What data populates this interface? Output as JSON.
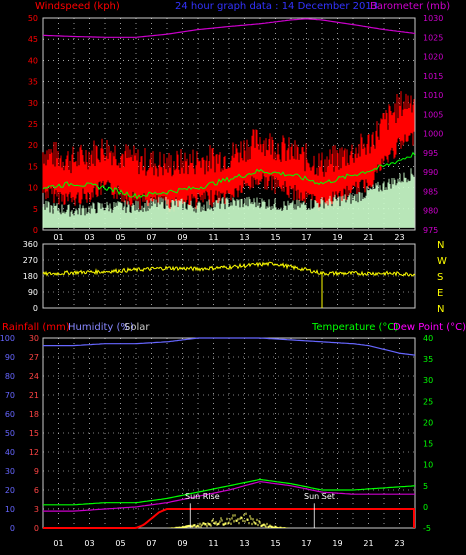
{
  "header": {
    "windspeed_label": "Windspeed (kph)",
    "subtitle": "24 hour graph data : 14 December 2013",
    "barometer_label": "Barometer (mb)"
  },
  "colors": {
    "wind": "#ff0000",
    "gust": "#ff0000",
    "avg": "#00ff00",
    "light": "#ccffcc",
    "baro": "#cc00cc",
    "dir": "#ffff00",
    "rain_label": "#ff0000",
    "hum_label": "#8888ff",
    "solar_label": "#cccccc",
    "temp_label": "#00ff00",
    "dew_label": "#ff00ff",
    "rain": "#ff0000",
    "humidity": "#6666ff",
    "temperature": "#00ff00",
    "dewpoint": "#cc00cc",
    "solar": "#ffff66",
    "grid": "#ffffff",
    "axis_left_top": "#ff0000",
    "axis_right_top": "#cc00cc",
    "axis_mid": "#ffffff",
    "axis_bottom_left": "#ff4444",
    "axis_bottom_left2": "#6666ff",
    "axis_bottom_right": "#00ff00"
  },
  "chart_data": [
    {
      "type": "line",
      "title": "24 hour graph data : 14 December 2013",
      "x_ticks": [
        "01",
        "03",
        "05",
        "07",
        "09",
        "11",
        "13",
        "15",
        "17",
        "19",
        "21",
        "23"
      ],
      "ylabel_left": "Windspeed (kph)",
      "ylabel_right": "Barometer (mb)",
      "ylim_left": [
        0,
        50
      ],
      "ylim_right": [
        975,
        1030
      ],
      "y_ticks_left": [
        0,
        5,
        10,
        15,
        20,
        25,
        30,
        35,
        40,
        45,
        50
      ],
      "y_ticks_right": [
        975,
        980,
        985,
        990,
        995,
        1000,
        1005,
        1010,
        1015,
        1020,
        1025,
        1030
      ],
      "grid": true,
      "series": [
        {
          "name": "Barometer",
          "axis": "right",
          "x": [
            0,
            2,
            4,
            6,
            8,
            10,
            12,
            14,
            16,
            17,
            18,
            20,
            22,
            24
          ],
          "values": [
            1025.5,
            1025.2,
            1025.0,
            1025.0,
            1025.8,
            1027.0,
            1027.8,
            1028.5,
            1029.5,
            1029.8,
            1029.5,
            1028.3,
            1027.0,
            1026.0
          ]
        },
        {
          "name": "Gust",
          "axis": "left",
          "x": [
            0,
            2,
            4,
            6,
            8,
            10,
            12,
            14,
            16,
            18,
            20,
            21,
            22,
            23,
            24
          ],
          "values": [
            17,
            15,
            18,
            15,
            14,
            15,
            16,
            20,
            17,
            14,
            17,
            19,
            24,
            28,
            30
          ]
        },
        {
          "name": "Average",
          "axis": "left",
          "x": [
            0,
            2,
            4,
            6,
            8,
            10,
            12,
            14,
            16,
            18,
            20,
            22,
            24
          ],
          "values": [
            10,
            11,
            10,
            8,
            9,
            10,
            12,
            14,
            13,
            11,
            13,
            15,
            18
          ]
        },
        {
          "name": "Windspeed",
          "axis": "left",
          "x": [
            0,
            2,
            4,
            6,
            8,
            10,
            12,
            14,
            16,
            18,
            20,
            22,
            24
          ],
          "values": [
            4,
            3,
            4,
            4,
            5,
            4,
            5,
            5,
            4,
            5,
            6,
            9,
            12
          ]
        }
      ]
    },
    {
      "type": "line",
      "x_ticks": [
        "01",
        "03",
        "05",
        "07",
        "09",
        "11",
        "13",
        "15",
        "17",
        "19",
        "21",
        "23"
      ],
      "ylim_left": [
        0,
        360
      ],
      "y_ticks_left": [
        0,
        90,
        180,
        270,
        360
      ],
      "y_ticks_right": [
        "N",
        "W",
        "S",
        "E",
        "N"
      ],
      "grid": true,
      "series": [
        {
          "name": "Wind direction",
          "x": [
            0,
            2,
            4,
            6,
            8,
            10,
            12,
            14,
            15,
            16,
            17,
            18,
            20,
            22,
            24
          ],
          "values": [
            190,
            200,
            205,
            215,
            225,
            220,
            230,
            245,
            250,
            230,
            215,
            195,
            195,
            195,
            190
          ]
        }
      ]
    },
    {
      "type": "line",
      "x_ticks": [
        "01",
        "03",
        "05",
        "07",
        "09",
        "11",
        "13",
        "15",
        "17",
        "19",
        "21",
        "23"
      ],
      "ylabel_left": "Rainfall (mm)",
      "ylabel_left2": "Humidity (%)",
      "ylabel_left3": "Solar",
      "ylabel_right": "Temperature (°C)",
      "ylabel_right2": "Dew Point (°C)",
      "ylim_left": [
        0,
        100
      ],
      "ylim_left2": [
        0,
        30
      ],
      "ylim_right": [
        -5,
        40
      ],
      "y_ticks_left": [
        0,
        10,
        20,
        30,
        40,
        50,
        60,
        70,
        80,
        90,
        100
      ],
      "y_ticks_left2": [
        0,
        3,
        6,
        9,
        12,
        15,
        18,
        21,
        24,
        27,
        30
      ],
      "y_ticks_right": [
        -5,
        0,
        5,
        10,
        15,
        20,
        25,
        30,
        35,
        40
      ],
      "annotations": [
        "Sun Rise",
        "Sun Set"
      ],
      "grid": true,
      "series": [
        {
          "name": "Humidity",
          "axis": "left",
          "x": [
            0,
            2,
            4,
            6,
            8,
            9,
            10,
            12,
            14,
            16,
            18,
            20,
            21,
            22,
            23,
            24
          ],
          "values": [
            96,
            96,
            97,
            97,
            98,
            99,
            100,
            100,
            100,
            99,
            98,
            97,
            96,
            94,
            92,
            91
          ]
        },
        {
          "name": "Temperature",
          "axis": "right",
          "x": [
            0,
            2,
            4,
            6,
            8,
            10,
            12,
            14,
            16,
            18,
            20,
            22,
            24
          ],
          "values": [
            0.5,
            0.5,
            1,
            1,
            2,
            3.5,
            5,
            6.5,
            5.5,
            4,
            4,
            4.5,
            5
          ]
        },
        {
          "name": "Dew Point",
          "axis": "right",
          "x": [
            0,
            2,
            4,
            6,
            8,
            10,
            12,
            14,
            16,
            18,
            20,
            22,
            24
          ],
          "values": [
            -1,
            -1,
            -0.5,
            0,
            1,
            2.5,
            4,
            6,
            5,
            3.5,
            3,
            3,
            3
          ]
        },
        {
          "name": "Rainfall",
          "axis": "left2",
          "x": [
            0,
            6,
            6.5,
            7,
            7.5,
            8,
            24
          ],
          "values": [
            0,
            0,
            0.5,
            1.5,
            2.5,
            3,
            3
          ]
        },
        {
          "name": "Solar",
          "axis": "left",
          "x": [
            8,
            9,
            10,
            11,
            12,
            13,
            14,
            15,
            16
          ],
          "values": [
            0,
            1,
            2,
            4,
            5,
            7,
            3,
            1,
            0
          ]
        }
      ]
    }
  ],
  "mid_axis_labels": {
    "n1": "N",
    "w": "W",
    "s": "S",
    "e": "E",
    "n2": "N"
  },
  "footer": {
    "rain_label": "Rainfall (mm)",
    "humidity_label": "Humidity (%)",
    "solar_label": "Solar",
    "temp_label": "Temperature (°C)",
    "dew_label": "Dew Point (°C)",
    "sunrise_label": "Sun Rise",
    "sunset_label": "Sun Set"
  }
}
